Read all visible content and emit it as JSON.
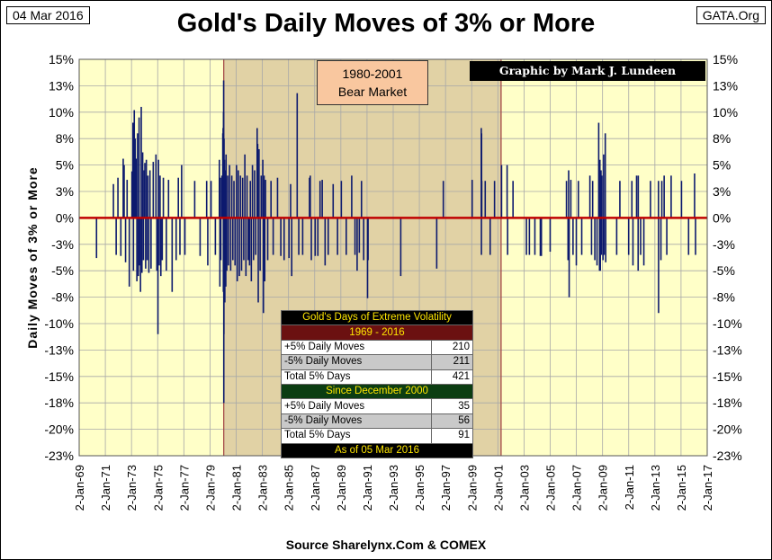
{
  "header": {
    "date": "04 Mar 2016",
    "source_tag": "GATA.Org",
    "title": "Gold's Daily Moves of 3% or More"
  },
  "footer": {
    "source": "Source Sharelynx.Com & COMEX"
  },
  "annotations": {
    "bear_market_line1": "1980-2001",
    "bear_market_line2": "Bear Market",
    "credit": "Graphic by Mark J. Lundeen"
  },
  "volatility_table": {
    "title": "Gold's Days of Extreme Volatility",
    "section1_header": "1969 - 2016",
    "section1_rows": [
      {
        "label": "+5% Daily Moves",
        "value": "210"
      },
      {
        "label": "-5% Daily Moves",
        "value": "211"
      },
      {
        "label": "Total 5% Days",
        "value": "421"
      }
    ],
    "section2_header": "Since December 2000",
    "section2_rows": [
      {
        "label": "+5% Daily Moves",
        "value": "35"
      },
      {
        "label": "-5% Daily Moves",
        "value": "56"
      },
      {
        "label": "Total 5% Days",
        "value": "91"
      }
    ],
    "footer": "As of 05 Mar 2016"
  },
  "colors": {
    "plot_bg": "#ffffc8",
    "bear_shade": "#e1d2a5",
    "bar": "#0d1a6e",
    "zero_line": "#c00000",
    "bear_edge": "#a04040",
    "grid": "#a8a8a8"
  },
  "chart_data": {
    "type": "bar",
    "title": "Gold's Daily Moves of 3% or More",
    "xlabel": "",
    "ylabel": "Daily Moves of 3% or More",
    "x_range": [
      "1969-01-02",
      "2017-01-02"
    ],
    "ylim": [
      -22.5,
      15
    ],
    "y_tick_labels": [
      "15%",
      "13%",
      "10%",
      "8%",
      "5%",
      "3%",
      "0%",
      "-3%",
      "-5%",
      "-8%",
      "-10%",
      "-13%",
      "-15%",
      "-18%",
      "-20%",
      "-23%"
    ],
    "x_tick_labels": [
      "2-Jan-69",
      "2-Jan-71",
      "2-Jan-73",
      "2-Jan-75",
      "2-Jan-77",
      "2-Jan-79",
      "2-Jan-81",
      "2-Jan-83",
      "2-Jan-85",
      "2-Jan-87",
      "2-Jan-89",
      "2-Jan-91",
      "2-Jan-93",
      "2-Jan-95",
      "2-Jan-97",
      "2-Jan-99",
      "2-Jan-01",
      "2-Jan-03",
      "2-Jan-05",
      "2-Jan-07",
      "2-Jan-09",
      "2-Jan-11",
      "2-Jan-13",
      "2-Jan-15",
      "2-Jan-17"
    ],
    "shaded_region": {
      "label": "1980-2001 Bear Market",
      "start": "1980-01-21",
      "end": "2001-04-02"
    },
    "grid": true,
    "legend": "none",
    "series": [
      {
        "values": [
          [
            "1970-05-01",
            -3.8
          ],
          [
            "1971-08-16",
            3.2
          ],
          [
            "1971-11-01",
            -3.5
          ],
          [
            "1971-12-20",
            3.8
          ],
          [
            "1972-03-10",
            -3.6
          ],
          [
            "1972-05-15",
            5.6
          ],
          [
            "1972-06-10",
            5.0
          ],
          [
            "1972-07-20",
            -4.2
          ],
          [
            "1972-09-01",
            3.6
          ],
          [
            "1972-11-01",
            -6.5
          ],
          [
            "1973-01-15",
            4.4
          ],
          [
            "1973-02-12",
            9.0
          ],
          [
            "1973-02-25",
            -5.0
          ],
          [
            "1973-03-20",
            10.2
          ],
          [
            "1973-04-15",
            7.5
          ],
          [
            "1973-05-10",
            5.6
          ],
          [
            "1973-06-01",
            -6.0
          ],
          [
            "1973-06-20",
            8.0
          ],
          [
            "1973-07-10",
            -5.5
          ],
          [
            "1973-08-01",
            9.5
          ],
          [
            "1973-08-20",
            -4.5
          ],
          [
            "1973-09-10",
            -7.0
          ],
          [
            "1973-10-01",
            10.5
          ],
          [
            "1973-10-20",
            -5.2
          ],
          [
            "1973-11-10",
            6.2
          ],
          [
            "1973-12-01",
            -4.0
          ],
          [
            "1973-12-20",
            4.5
          ],
          [
            "1974-01-10",
            5.2
          ],
          [
            "1974-02-01",
            -4.8
          ],
          [
            "1974-02-20",
            5.5
          ],
          [
            "1974-03-15",
            -4.0
          ],
          [
            "1974-04-05",
            4.0
          ],
          [
            "1974-05-01",
            -5.2
          ],
          [
            "1974-06-01",
            4.5
          ],
          [
            "1974-07-01",
            -4.8
          ],
          [
            "1974-09-01",
            5.3
          ],
          [
            "1974-11-15",
            6.0
          ],
          [
            "1974-12-10",
            -5.0
          ],
          [
            "1975-01-10",
            -11.0
          ],
          [
            "1975-01-25",
            5.5
          ],
          [
            "1975-02-15",
            -4.5
          ],
          [
            "1975-03-10",
            4.0
          ],
          [
            "1975-04-01",
            -5.5
          ],
          [
            "1975-05-10",
            -4.0
          ],
          [
            "1975-06-10",
            3.8
          ],
          [
            "1975-09-01",
            -5.0
          ],
          [
            "1975-11-01",
            3.6
          ],
          [
            "1976-02-10",
            -7.0
          ],
          [
            "1976-06-01",
            -4.0
          ],
          [
            "1976-08-01",
            3.8
          ],
          [
            "1976-09-15",
            -3.5
          ],
          [
            "1976-11-01",
            5.0
          ],
          [
            "1977-02-01",
            -3.5
          ],
          [
            "1977-11-01",
            3.5
          ],
          [
            "1978-04-01",
            -3.6
          ],
          [
            "1978-10-01",
            3.5
          ],
          [
            "1978-11-01",
            -4.5
          ],
          [
            "1979-02-01",
            3.5
          ],
          [
            "1979-06-01",
            -3.5
          ],
          [
            "1979-09-20",
            5.5
          ],
          [
            "1979-10-05",
            -6.5
          ],
          [
            "1979-10-20",
            3.8
          ],
          [
            "1979-11-01",
            -4.0
          ],
          [
            "1979-12-01",
            4.0
          ],
          [
            "1979-12-25",
            8.0
          ],
          [
            "1980-01-03",
            8.5
          ],
          [
            "1980-01-10",
            -7.0
          ],
          [
            "1980-01-15",
            10.0
          ],
          [
            "1980-01-18",
            13.0
          ],
          [
            "1980-01-22",
            -17.5
          ],
          [
            "1980-01-25",
            -11.0
          ],
          [
            "1980-01-29",
            7.5
          ],
          [
            "1980-02-08",
            5.5
          ],
          [
            "1980-02-20",
            -8.0
          ],
          [
            "1980-03-05",
            4.5
          ],
          [
            "1980-03-18",
            -6.5
          ],
          [
            "1980-03-25",
            6.0
          ],
          [
            "1980-04-15",
            -5.0
          ],
          [
            "1980-05-10",
            4.0
          ],
          [
            "1980-06-01",
            -4.5
          ],
          [
            "1980-07-01",
            5.0
          ],
          [
            "1980-08-01",
            -5.0
          ],
          [
            "1980-09-01",
            4.0
          ],
          [
            "1980-10-01",
            -4.0
          ],
          [
            "1980-11-01",
            3.5
          ],
          [
            "1980-12-01",
            -4.5
          ],
          [
            "1981-01-10",
            5.0
          ],
          [
            "1981-02-01",
            -6.0
          ],
          [
            "1981-03-01",
            4.5
          ],
          [
            "1981-04-01",
            -5.5
          ],
          [
            "1981-05-01",
            4.0
          ],
          [
            "1981-06-01",
            -5.0
          ],
          [
            "1981-07-01",
            3.8
          ],
          [
            "1981-08-01",
            -4.0
          ],
          [
            "1981-09-01",
            6.0
          ],
          [
            "1981-10-01",
            -5.5
          ],
          [
            "1981-11-01",
            4.0
          ],
          [
            "1981-12-01",
            -4.0
          ],
          [
            "1982-01-10",
            -4.5
          ],
          [
            "1982-02-01",
            3.5
          ],
          [
            "1982-03-01",
            -6.0
          ],
          [
            "1982-04-01",
            5.0
          ],
          [
            "1982-05-01",
            -4.0
          ],
          [
            "1982-06-01",
            4.5
          ],
          [
            "1982-07-01",
            -3.5
          ],
          [
            "1982-08-10",
            8.5
          ],
          [
            "1982-08-25",
            7.0
          ],
          [
            "1982-09-10",
            -8.0
          ],
          [
            "1982-10-01",
            6.5
          ],
          [
            "1982-11-01",
            -5.0
          ],
          [
            "1982-12-01",
            4.0
          ],
          [
            "1983-01-15",
            5.5
          ],
          [
            "1983-02-01",
            -9.0
          ],
          [
            "1983-02-20",
            4.0
          ],
          [
            "1983-03-10",
            -6.0
          ],
          [
            "1983-04-01",
            3.6
          ],
          [
            "1983-06-01",
            -4.0
          ],
          [
            "1983-09-01",
            3.5
          ],
          [
            "1983-11-01",
            -3.5
          ],
          [
            "1984-03-01",
            3.8
          ],
          [
            "1984-06-01",
            -3.6
          ],
          [
            "1984-09-01",
            -4.0
          ],
          [
            "1985-01-15",
            -3.8
          ],
          [
            "1985-03-01",
            3.2
          ],
          [
            "1985-04-01",
            -5.5
          ],
          [
            "1985-09-01",
            11.8
          ],
          [
            "1985-10-15",
            -3.5
          ],
          [
            "1986-02-01",
            -3.5
          ],
          [
            "1986-08-10",
            3.8
          ],
          [
            "1986-09-01",
            4.0
          ],
          [
            "1986-10-01",
            -4.0
          ],
          [
            "1987-01-15",
            -3.6
          ],
          [
            "1987-04-01",
            -3.6
          ],
          [
            "1987-06-01",
            3.5
          ],
          [
            "1987-08-01",
            3.6
          ],
          [
            "1987-10-20",
            -4.5
          ],
          [
            "1988-01-15",
            -3.5
          ],
          [
            "1988-06-01",
            3.2
          ],
          [
            "1988-10-01",
            -3.5
          ],
          [
            "1989-01-15",
            3.5
          ],
          [
            "1989-06-01",
            -3.5
          ],
          [
            "1989-11-01",
            4.0
          ],
          [
            "1990-02-01",
            -3.5
          ],
          [
            "1990-04-01",
            -5.0
          ],
          [
            "1990-06-01",
            -3.3
          ],
          [
            "1990-08-01",
            3.5
          ],
          [
            "1990-10-01",
            -4.0
          ],
          [
            "1991-01-17",
            -7.6
          ],
          [
            "1991-02-01",
            -4.0
          ],
          [
            "1993-08-01",
            -5.5
          ],
          [
            "1996-05-01",
            -4.8
          ],
          [
            "1996-11-01",
            3.5
          ],
          [
            "1999-01-15",
            3.6
          ],
          [
            "1999-09-27",
            8.5
          ],
          [
            "1999-10-01",
            -3.5
          ],
          [
            "1999-10-05",
            8.0
          ],
          [
            "1999-10-10",
            3.5
          ],
          [
            "2000-01-15",
            3.5
          ],
          [
            "2000-06-01",
            -3.5
          ],
          [
            "2000-10-01",
            3.5
          ],
          [
            "2001-04-15",
            5.0
          ],
          [
            "2001-09-17",
            5.0
          ],
          [
            "2001-10-01",
            -3.5
          ],
          [
            "2002-03-01",
            3.5
          ],
          [
            "2003-03-10",
            -3.5
          ],
          [
            "2003-06-01",
            -3.5
          ],
          [
            "2003-11-01",
            -3.5
          ],
          [
            "2004-04-01",
            -3.6
          ],
          [
            "2004-05-01",
            -3.6
          ],
          [
            "2005-01-01",
            -3.2
          ],
          [
            "2006-04-01",
            3.5
          ],
          [
            "2006-05-15",
            -4.0
          ],
          [
            "2006-06-01",
            4.5
          ],
          [
            "2006-06-15",
            -7.5
          ],
          [
            "2006-08-01",
            3.6
          ],
          [
            "2006-10-01",
            -3.5
          ],
          [
            "2007-01-01",
            -4.5
          ],
          [
            "2007-02-27",
            3.5
          ],
          [
            "2007-06-01",
            -3.5
          ],
          [
            "2008-01-15",
            4.0
          ],
          [
            "2008-03-01",
            -3.5
          ],
          [
            "2008-04-01",
            3.5
          ],
          [
            "2008-06-01",
            -4.0
          ],
          [
            "2008-08-01",
            -4.5
          ],
          [
            "2008-09-17",
            9.0
          ],
          [
            "2008-10-10",
            -5.0
          ],
          [
            "2008-10-20",
            5.5
          ],
          [
            "2008-11-01",
            -5.0
          ],
          [
            "2008-11-20",
            4.5
          ],
          [
            "2008-12-01",
            -3.5
          ],
          [
            "2008-12-15",
            4.0
          ],
          [
            "2009-01-15",
            -4.0
          ],
          [
            "2009-02-01",
            6.0
          ],
          [
            "2009-02-15",
            -3.5
          ],
          [
            "2009-03-19",
            8.0
          ],
          [
            "2009-04-01",
            -4.2
          ],
          [
            "2010-02-01",
            -3.5
          ],
          [
            "2010-05-01",
            3.5
          ],
          [
            "2011-01-01",
            -3.5
          ],
          [
            "2011-04-01",
            3.5
          ],
          [
            "2011-05-01",
            -4.5
          ],
          [
            "2011-08-10",
            4.0
          ],
          [
            "2011-09-23",
            -5.0
          ],
          [
            "2011-09-26",
            4.0
          ],
          [
            "2011-12-01",
            -3.5
          ],
          [
            "2012-02-29",
            -4.5
          ],
          [
            "2012-09-01",
            3.5
          ],
          [
            "2013-04-12",
            3.5
          ],
          [
            "2013-04-15",
            -9.0
          ],
          [
            "2013-06-20",
            -4.0
          ],
          [
            "2013-07-15",
            3.5
          ],
          [
            "2013-09-18",
            4.0
          ],
          [
            "2013-12-01",
            -3.5
          ],
          [
            "2014-04-01",
            4.0
          ],
          [
            "2015-01-15",
            3.5
          ],
          [
            "2015-08-01",
            -3.5
          ],
          [
            "2016-01-15",
            4.2
          ],
          [
            "2016-02-11",
            -3.5
          ]
        ]
      }
    ]
  }
}
